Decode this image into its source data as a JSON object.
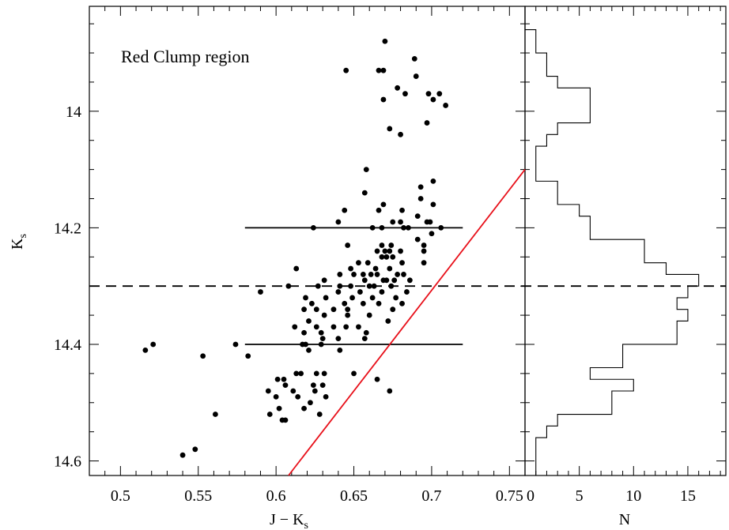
{
  "chart_data": [
    {
      "type": "scatter",
      "xlabel": "J − K",
      "xlabel_sub": "s",
      "ylabel": "K",
      "ylabel_sub": "s",
      "xlim": [
        0.48,
        0.76
      ],
      "ylim": [
        14.625,
        13.82
      ],
      "y_inverted": true,
      "xticks": [
        0.5,
        0.55,
        0.6,
        0.65,
        0.7,
        0.75
      ],
      "xtick_labels": [
        "0.5",
        "0.55",
        "0.6",
        "0.65",
        "0.7",
        "0.75"
      ],
      "yticks": [
        14.0,
        14.2,
        14.4,
        14.6
      ],
      "ytick_labels": [
        "14",
        "14.2",
        "14.4",
        "14.6"
      ],
      "annotation": "Red Clump region",
      "colors": {
        "points": "#000000",
        "red_line": "#e8101a"
      },
      "points": [
        [
          0.67,
          13.88
        ],
        [
          0.689,
          13.91
        ],
        [
          0.645,
          13.93
        ],
        [
          0.666,
          13.93
        ],
        [
          0.669,
          13.93
        ],
        [
          0.69,
          13.94
        ],
        [
          0.678,
          13.96
        ],
        [
          0.683,
          13.97
        ],
        [
          0.698,
          13.97
        ],
        [
          0.705,
          13.97
        ],
        [
          0.669,
          13.98
        ],
        [
          0.701,
          13.98
        ],
        [
          0.709,
          13.99
        ],
        [
          0.697,
          14.02
        ],
        [
          0.673,
          14.03
        ],
        [
          0.68,
          14.04
        ],
        [
          0.658,
          14.1
        ],
        [
          0.701,
          14.12
        ],
        [
          0.693,
          14.13
        ],
        [
          0.657,
          14.14
        ],
        [
          0.693,
          14.15
        ],
        [
          0.701,
          14.16
        ],
        [
          0.669,
          14.16
        ],
        [
          0.681,
          14.17
        ],
        [
          0.666,
          14.17
        ],
        [
          0.691,
          14.18
        ],
        [
          0.644,
          14.17
        ],
        [
          0.675,
          14.19
        ],
        [
          0.68,
          14.19
        ],
        [
          0.697,
          14.19
        ],
        [
          0.699,
          14.19
        ],
        [
          0.64,
          14.19
        ],
        [
          0.662,
          14.2
        ],
        [
          0.682,
          14.2
        ],
        [
          0.685,
          14.2
        ],
        [
          0.706,
          14.2
        ],
        [
          0.624,
          14.2
        ],
        [
          0.668,
          14.2
        ],
        [
          0.7,
          14.21
        ],
        [
          0.691,
          14.22
        ],
        [
          0.646,
          14.23
        ],
        [
          0.668,
          14.23
        ],
        [
          0.674,
          14.23
        ],
        [
          0.695,
          14.23
        ],
        [
          0.665,
          14.24
        ],
        [
          0.67,
          14.24
        ],
        [
          0.673,
          14.24
        ],
        [
          0.68,
          14.24
        ],
        [
          0.695,
          14.24
        ],
        [
          0.668,
          14.25
        ],
        [
          0.671,
          14.25
        ],
        [
          0.675,
          14.25
        ],
        [
          0.653,
          14.26
        ],
        [
          0.659,
          14.26
        ],
        [
          0.681,
          14.26
        ],
        [
          0.695,
          14.26
        ],
        [
          0.664,
          14.27
        ],
        [
          0.673,
          14.27
        ],
        [
          0.613,
          14.27
        ],
        [
          0.648,
          14.27
        ],
        [
          0.656,
          14.28
        ],
        [
          0.665,
          14.28
        ],
        [
          0.678,
          14.28
        ],
        [
          0.682,
          14.28
        ],
        [
          0.641,
          14.28
        ],
        [
          0.65,
          14.28
        ],
        [
          0.661,
          14.28
        ],
        [
          0.671,
          14.29
        ],
        [
          0.676,
          14.29
        ],
        [
          0.669,
          14.29
        ],
        [
          0.686,
          14.29
        ],
        [
          0.631,
          14.29
        ],
        [
          0.657,
          14.29
        ],
        [
          0.608,
          14.3
        ],
        [
          0.641,
          14.3
        ],
        [
          0.648,
          14.3
        ],
        [
          0.663,
          14.3
        ],
        [
          0.674,
          14.3
        ],
        [
          0.627,
          14.3
        ],
        [
          0.66,
          14.3
        ],
        [
          0.684,
          14.31
        ],
        [
          0.59,
          14.31
        ],
        [
          0.64,
          14.31
        ],
        [
          0.654,
          14.31
        ],
        [
          0.668,
          14.31
        ],
        [
          0.619,
          14.32
        ],
        [
          0.632,
          14.32
        ],
        [
          0.649,
          14.32
        ],
        [
          0.662,
          14.32
        ],
        [
          0.677,
          14.32
        ],
        [
          0.644,
          14.33
        ],
        [
          0.623,
          14.33
        ],
        [
          0.656,
          14.33
        ],
        [
          0.666,
          14.33
        ],
        [
          0.681,
          14.33
        ],
        [
          0.626,
          14.34
        ],
        [
          0.637,
          14.34
        ],
        [
          0.618,
          14.34
        ],
        [
          0.646,
          14.34
        ],
        [
          0.675,
          14.34
        ],
        [
          0.631,
          14.35
        ],
        [
          0.66,
          14.35
        ],
        [
          0.646,
          14.35
        ],
        [
          0.621,
          14.36
        ],
        [
          0.672,
          14.36
        ],
        [
          0.637,
          14.37
        ],
        [
          0.612,
          14.37
        ],
        [
          0.626,
          14.37
        ],
        [
          0.653,
          14.37
        ],
        [
          0.645,
          14.37
        ],
        [
          0.629,
          14.38
        ],
        [
          0.618,
          14.38
        ],
        [
          0.658,
          14.38
        ],
        [
          0.64,
          14.39
        ],
        [
          0.63,
          14.39
        ],
        [
          0.657,
          14.39
        ],
        [
          0.629,
          14.4
        ],
        [
          0.617,
          14.4
        ],
        [
          0.621,
          14.41
        ],
        [
          0.574,
          14.4
        ],
        [
          0.619,
          14.4
        ],
        [
          0.641,
          14.41
        ],
        [
          0.582,
          14.42
        ],
        [
          0.553,
          14.42
        ],
        [
          0.521,
          14.4
        ],
        [
          0.516,
          14.41
        ],
        [
          0.613,
          14.45
        ],
        [
          0.616,
          14.45
        ],
        [
          0.626,
          14.45
        ],
        [
          0.631,
          14.45
        ],
        [
          0.65,
          14.45
        ],
        [
          0.665,
          14.46
        ],
        [
          0.605,
          14.46
        ],
        [
          0.601,
          14.46
        ],
        [
          0.606,
          14.47
        ],
        [
          0.624,
          14.47
        ],
        [
          0.63,
          14.47
        ],
        [
          0.673,
          14.48
        ],
        [
          0.595,
          14.48
        ],
        [
          0.611,
          14.48
        ],
        [
          0.625,
          14.48
        ],
        [
          0.632,
          14.49
        ],
        [
          0.6,
          14.49
        ],
        [
          0.614,
          14.49
        ],
        [
          0.622,
          14.5
        ],
        [
          0.618,
          14.51
        ],
        [
          0.602,
          14.51
        ],
        [
          0.628,
          14.52
        ],
        [
          0.596,
          14.52
        ],
        [
          0.561,
          14.52
        ],
        [
          0.604,
          14.53
        ],
        [
          0.606,
          14.53
        ],
        [
          0.548,
          14.58
        ],
        [
          0.54,
          14.59
        ]
      ],
      "hlines_solid": [
        {
          "y": 14.2,
          "x0": 0.58,
          "x1": 0.72
        },
        {
          "y": 14.4,
          "x0": 0.58,
          "x1": 0.72
        }
      ],
      "hline_dashed": 14.3,
      "red_line": {
        "x0": 0.608,
        "y0": 14.625,
        "x1": 0.76,
        "y1": 14.1
      }
    },
    {
      "type": "histogram",
      "xlabel": "N",
      "xlim": [
        0,
        18.5
      ],
      "ylim": [
        14.625,
        13.82
      ],
      "xticks": [
        0,
        5,
        10,
        15
      ],
      "xtick_labels": [
        "0",
        "5",
        "10",
        "15"
      ],
      "bin_edges": [
        13.82,
        13.86,
        13.88,
        13.9,
        13.92,
        13.94,
        13.96,
        14.02,
        14.04,
        14.06,
        14.08,
        14.1,
        14.12,
        14.14,
        14.16,
        14.18,
        14.22,
        14.26,
        14.28,
        14.3,
        14.32,
        14.34,
        14.36,
        14.4,
        14.42,
        14.44,
        14.46,
        14.48,
        14.52,
        14.54,
        14.56,
        14.6,
        14.625
      ],
      "counts": [
        0,
        1,
        1,
        2,
        2,
        3,
        6,
        3,
        2,
        1,
        1,
        1,
        3,
        3,
        5,
        6,
        11,
        13,
        16,
        15,
        14,
        15,
        14,
        9,
        9,
        6,
        10,
        8,
        3,
        2,
        1,
        1
      ]
    }
  ]
}
